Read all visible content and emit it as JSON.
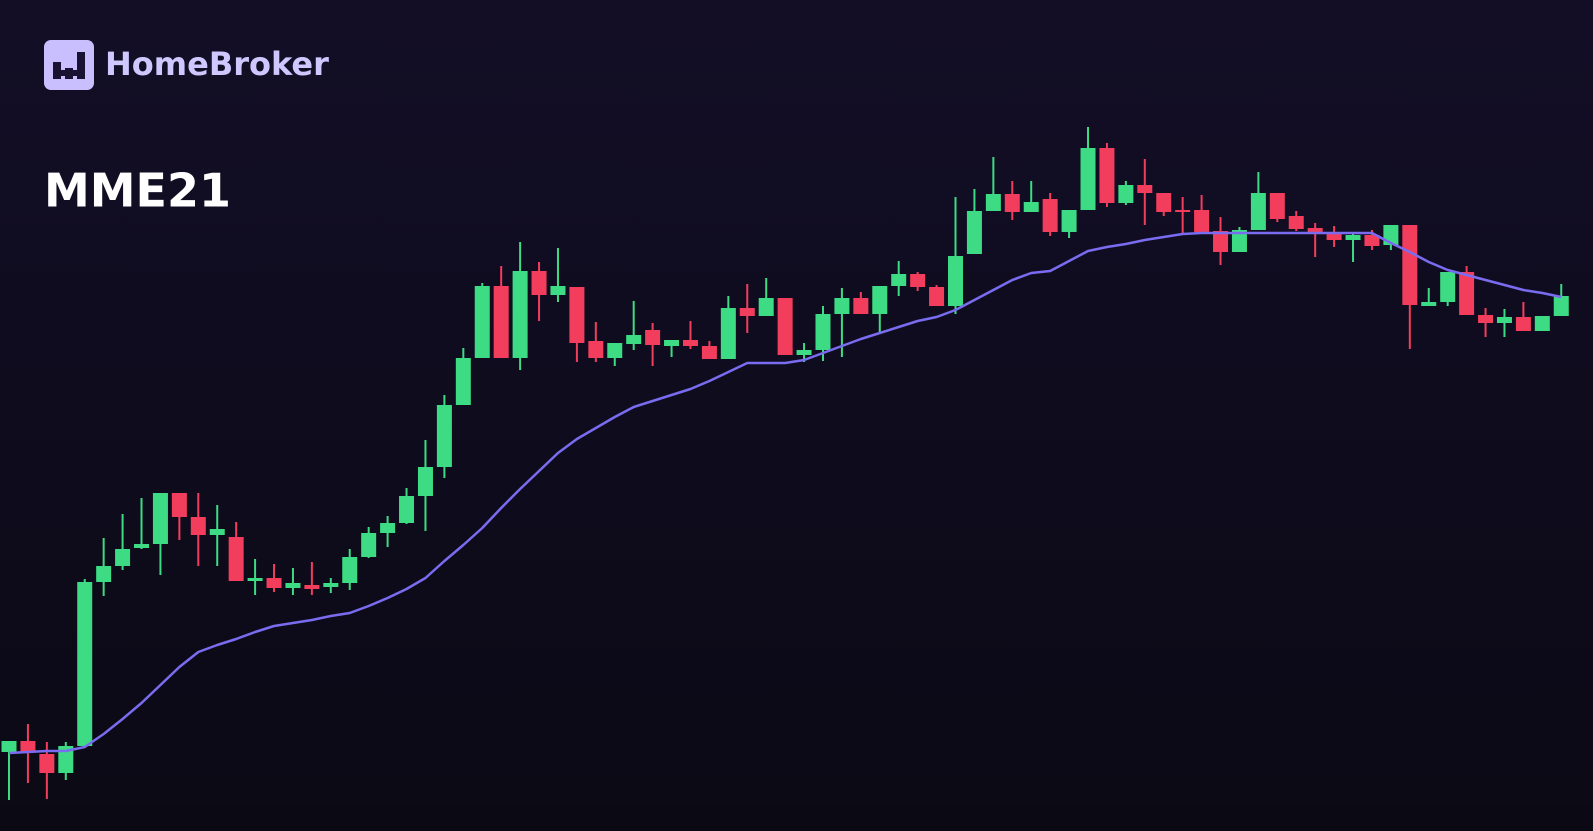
{
  "brand": "HomeBroker",
  "chart_data": {
    "type": "candlestick",
    "title": "MME21",
    "up_color": "#3ddc84",
    "down_color": "#f23d5c",
    "ylim": [
      0,
      80
    ],
    "open": [
      5.8,
      6.9,
      5.6,
      3.7,
      6.4,
      22.8,
      24.4,
      26.2,
      26.6,
      31.7,
      29.3,
      27.5,
      27.3,
      22.9,
      23.2,
      22.2,
      22.5,
      22.3,
      22.7,
      25.3,
      27.7,
      28.7,
      31.4,
      34.3,
      40.5,
      45.2,
      52.4,
      45.2,
      53.9,
      51.5,
      52.3,
      46.9,
      45.2,
      46.6,
      48.0,
      46.4,
      47.0,
      46.4,
      45.1,
      50.2,
      49.4,
      51.2,
      45.5,
      46.0,
      49.6,
      51.2,
      49.6,
      52.4,
      53.6,
      52.3,
      50.4,
      55.6,
      59.9,
      61.6,
      59.8,
      61.1,
      57.8,
      60.0,
      66.2,
      60.7,
      62.5,
      61.7,
      60.0,
      60.0,
      57.9,
      55.8,
      58.0,
      61.7,
      59.4,
      58.2,
      57.7,
      57.0,
      57.5,
      56.5,
      58.5,
      50.4,
      50.8,
      53.8,
      49.5,
      48.7,
      49.3,
      47.9,
      49.4
    ],
    "high": [
      6.9,
      8.6,
      6.8,
      6.8,
      23.1,
      27.2,
      29.6,
      31.2,
      31.7,
      31.7,
      31.7,
      30.5,
      28.8,
      25.1,
      24.6,
      24.2,
      24.8,
      23.2,
      26.1,
      28.3,
      29.4,
      32.2,
      37.0,
      41.5,
      46.2,
      52.7,
      54.4,
      56.8,
      54.8,
      56.2,
      52.3,
      48.8,
      46.7,
      50.9,
      48.7,
      47.0,
      48.9,
      46.9,
      51.4,
      52.6,
      53.2,
      51.2,
      46.7,
      50.4,
      52.2,
      51.8,
      52.4,
      54.9,
      53.8,
      52.5,
      61.3,
      62.1,
      65.3,
      62.9,
      62.9,
      61.7,
      60.0,
      68.3,
      66.7,
      62.9,
      65.1,
      61.7,
      61.3,
      61.5,
      59.3,
      58.3,
      63.8,
      61.7,
      59.9,
      58.7,
      58.4,
      57.7,
      58.0,
      58.5,
      58.5,
      52.2,
      53.8,
      54.4,
      50.2,
      50.1,
      50.8,
      49.4,
      52.6
    ],
    "low": [
      1.0,
      2.7,
      1.1,
      3.0,
      6.2,
      21.4,
      24.0,
      26.1,
      23.5,
      27.0,
      24.4,
      24.4,
      22.9,
      21.5,
      21.8,
      21.5,
      21.5,
      21.7,
      22.0,
      25.2,
      26.3,
      28.6,
      27.9,
      33.2,
      40.5,
      45.2,
      45.2,
      44.0,
      48.9,
      50.8,
      44.8,
      44.8,
      44.4,
      46.0,
      44.4,
      45.3,
      46.1,
      45.1,
      45.1,
      47.7,
      49.4,
      45.5,
      44.8,
      44.9,
      45.3,
      49.6,
      47.7,
      51.4,
      51.9,
      50.4,
      49.6,
      55.6,
      59.9,
      59.0,
      59.8,
      57.4,
      57.2,
      60.0,
      60.3,
      60.5,
      58.5,
      59.4,
      57.6,
      57.8,
      54.5,
      55.8,
      58.0,
      58.8,
      57.9,
      55.3,
      56.3,
      54.8,
      56.0,
      56.0,
      46.1,
      50.4,
      50.4,
      49.5,
      47.3,
      47.3,
      47.9,
      47.9,
      49.4
    ],
    "close": [
      6.9,
      5.8,
      3.7,
      6.4,
      22.8,
      24.4,
      26.1,
      26.6,
      31.7,
      29.3,
      27.5,
      28.1,
      22.9,
      23.2,
      22.2,
      22.7,
      22.1,
      22.7,
      25.3,
      27.7,
      28.7,
      31.4,
      34.3,
      40.5,
      45.2,
      52.4,
      45.2,
      53.9,
      51.5,
      52.4,
      46.7,
      45.2,
      46.7,
      47.5,
      46.5,
      47.0,
      46.4,
      45.1,
      50.2,
      49.4,
      51.2,
      45.5,
      46.0,
      49.6,
      51.2,
      49.6,
      52.4,
      53.6,
      52.3,
      50.4,
      55.4,
      59.9,
      61.6,
      59.8,
      60.8,
      57.8,
      60.0,
      66.2,
      60.7,
      62.5,
      61.7,
      59.8,
      59.8,
      57.8,
      55.8,
      58.0,
      61.7,
      59.1,
      58.1,
      57.6,
      57.0,
      57.5,
      56.4,
      58.5,
      50.5,
      50.8,
      53.8,
      49.5,
      48.7,
      49.3,
      47.9,
      49.4,
      51.4
    ],
    "ma": {
      "color": "#7a6cf0",
      "values": [
        5.7,
        5.8,
        5.9,
        5.9,
        6.3,
        7.6,
        9.1,
        10.7,
        12.5,
        14.3,
        15.8,
        16.5,
        17.1,
        17.8,
        18.4,
        18.7,
        19.0,
        19.4,
        19.7,
        20.4,
        21.2,
        22.1,
        23.2,
        24.9,
        26.5,
        28.2,
        30.2,
        32.1,
        33.9,
        35.7,
        37.1,
        38.2,
        39.3,
        40.3,
        40.9,
        41.5,
        42.1,
        42.9,
        43.8,
        44.7,
        44.7,
        44.7,
        45.0,
        45.7,
        46.4,
        47.1,
        47.7,
        48.3,
        48.9,
        49.3,
        50.0,
        51.0,
        52.0,
        53.0,
        53.7,
        53.9,
        54.9,
        55.9,
        56.3,
        56.6,
        57.0,
        57.3,
        57.6,
        57.7,
        57.7,
        57.7,
        57.7,
        57.7,
        57.7,
        57.7,
        57.7,
        57.7,
        57.7,
        56.7,
        55.8,
        54.8,
        54.0,
        53.5,
        53.0,
        52.5,
        52.0,
        51.7,
        51.3
      ]
    }
  }
}
